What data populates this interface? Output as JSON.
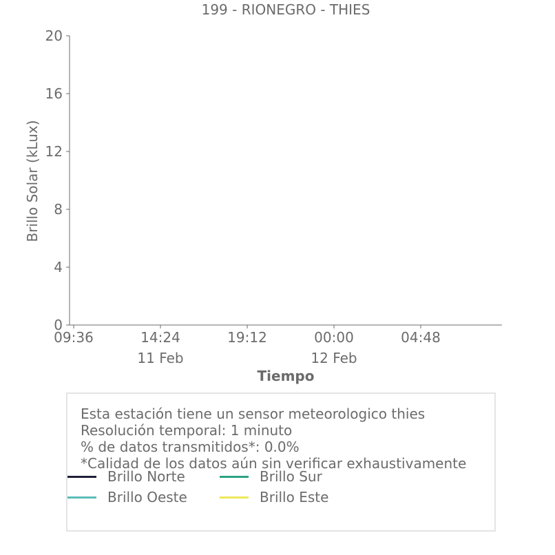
{
  "chart_data": {
    "type": "line",
    "title": "199 - RIONEGRO - THIES",
    "xlabel": "Tiempo",
    "ylabel": "Brillo Solar (kLux)",
    "ylim": [
      0,
      20
    ],
    "yticks": [
      0,
      4,
      8,
      12,
      16,
      20
    ],
    "xticks": [
      {
        "label": "09:36",
        "date": ""
      },
      {
        "label": "14:24",
        "date": "11 Feb"
      },
      {
        "label": "19:12",
        "date": ""
      },
      {
        "label": "00:00",
        "date": "12 Feb"
      },
      {
        "label": "04:48",
        "date": ""
      }
    ],
    "grid": false,
    "legend_position": "bottom",
    "series": [
      {
        "name": "Brillo Norte",
        "color": "#1f1f3a",
        "values": []
      },
      {
        "name": "Brillo Sur",
        "color": "#2aa383",
        "values": []
      },
      {
        "name": "Brillo Oeste",
        "color": "#5bbcb8",
        "values": []
      },
      {
        "name": "Brillo Este",
        "color": "#ece85a",
        "values": []
      }
    ]
  },
  "info": {
    "lines": [
      "Esta estación tiene un sensor meteorologico thies",
      "Resolución temporal: 1 minuto",
      "% de datos transmitidos*: 0.0%",
      "*Calidad de los datos aún sin verificar exhaustivamente"
    ]
  }
}
